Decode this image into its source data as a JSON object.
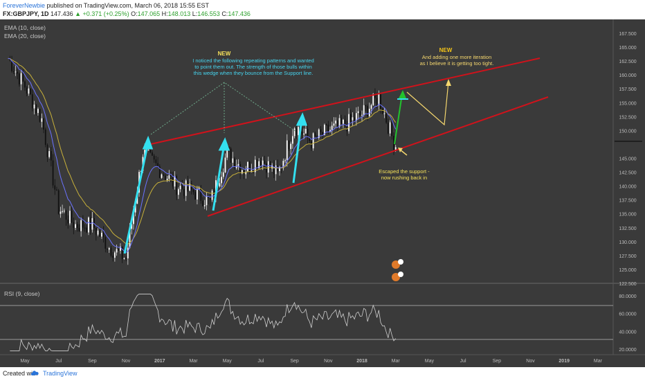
{
  "header": {
    "author": "ForeverNewbie",
    "published_text": "published on TradingView.com, March 06, 2018 15:55 EST",
    "symbol": "FX:GBPJPY, 1D",
    "last": "147.436",
    "change": "▲ +0.371 (+0.25%)",
    "o_label": "O:",
    "o": "147.065",
    "h_label": "H:",
    "h": "148.013",
    "l_label": "L:",
    "l": "146.553",
    "c_label": "C:",
    "c": "147.436"
  },
  "indicators": {
    "ema1": "EMA (10, close)",
    "ema2": "EMA (20, close)",
    "rsi": "RSI (9, close)"
  },
  "annotations": {
    "new1": "NEW",
    "note1_lines": [
      "I noticed the following repeating patterns and wanted",
      "to point them out. The strength of those bulls within",
      "this wedge when they bounce from the Support line."
    ],
    "new2": "NEW",
    "note2_lines": [
      "And adding one more iteration",
      "as I believe it is getting too tight."
    ],
    "note3_lines": [
      "Escaped the support -",
      "now rushing back in"
    ]
  },
  "footer": {
    "created": "Created with",
    "brand": "TradingView"
  },
  "colors": {
    "background": "#3a3a3a",
    "wedge": "#d0121b",
    "arrow_cyan": "#33e0f0",
    "arrow_green": "#22c32e",
    "arrow_yellow": "#f5d76e",
    "ema10": "#6b73ff",
    "ema20": "#c8b13a"
  },
  "chart_data": {
    "type": "candlestick",
    "symbol": "FX:GBPJPY",
    "timeframe": "1D",
    "price_ticks": [
      "167.500",
      "165.000",
      "162.500",
      "160.000",
      "157.500",
      "155.000",
      "152.500",
      "150.000",
      "147.436",
      "145.000",
      "142.500",
      "140.000",
      "137.500",
      "135.000",
      "132.500",
      "130.000",
      "127.500",
      "125.000",
      "122.500"
    ],
    "rsi_ticks": [
      "80.0000",
      "60.0000",
      "40.0000",
      "20.0000"
    ],
    "rsi_levels": [
      70,
      30
    ],
    "time_ticks": [
      "May",
      "Jul",
      "Sep",
      "Nov",
      "2017",
      "Mar",
      "May",
      "Jul",
      "Sep",
      "Nov",
      "2018",
      "Mar",
      "May",
      "Jul",
      "Sep",
      "Nov",
      "2019",
      "Mar"
    ],
    "ylim": [
      122.5,
      168.5
    ],
    "approx_close_path": [
      {
        "x": "2016-04",
        "y": 163
      },
      {
        "x": "2016-05",
        "y": 158
      },
      {
        "x": "2016-06",
        "y": 152
      },
      {
        "x": "2016-07",
        "y": 136
      },
      {
        "x": "2016-08",
        "y": 133
      },
      {
        "x": "2016-09",
        "y": 133
      },
      {
        "x": "2016-10",
        "y": 129
      },
      {
        "x": "2016-11",
        "y": 127
      },
      {
        "x": "2016-12",
        "y": 146
      },
      {
        "x": "2017-01",
        "y": 143
      },
      {
        "x": "2017-02",
        "y": 140
      },
      {
        "x": "2017-03",
        "y": 139
      },
      {
        "x": "2017-04",
        "y": 137
      },
      {
        "x": "2017-05",
        "y": 146
      },
      {
        "x": "2017-06",
        "y": 143
      },
      {
        "x": "2017-07",
        "y": 145
      },
      {
        "x": "2017-08",
        "y": 142
      },
      {
        "x": "2017-09",
        "y": 151
      },
      {
        "x": "2017-10",
        "y": 148
      },
      {
        "x": "2017-11",
        "y": 150
      },
      {
        "x": "2017-12",
        "y": 151
      },
      {
        "x": "2018-01",
        "y": 153
      },
      {
        "x": "2018-02",
        "y": 156
      },
      {
        "x": "2018-03",
        "y": 147
      }
    ]
  }
}
